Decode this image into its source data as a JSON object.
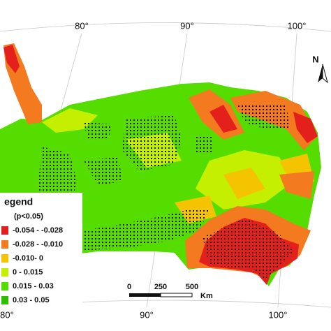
{
  "map": {
    "top_labels": [
      "80°",
      "90°",
      "100°"
    ],
    "bottom_labels": [
      "80°",
      "90°",
      "100°"
    ],
    "north": "N",
    "legend": {
      "title": "egend",
      "subtitle": "(p<0.05)",
      "items": [
        {
          "label": "-0.054 - -0.028",
          "color": "#e3201b"
        },
        {
          "label": "-0.028 - -0.010",
          "color": "#f47a20"
        },
        {
          "label": "-0.010- 0",
          "color": "#f5c400"
        },
        {
          "label": "0 - 0.015",
          "color": "#c4f000"
        },
        {
          "label": "0.015 - 0.03",
          "color": "#55dd00"
        },
        {
          "label": "0.03 - 0.05",
          "color": "#2fbf00"
        }
      ]
    },
    "scale": {
      "labels": [
        "0",
        "250",
        "500"
      ],
      "unit": "Km"
    }
  }
}
